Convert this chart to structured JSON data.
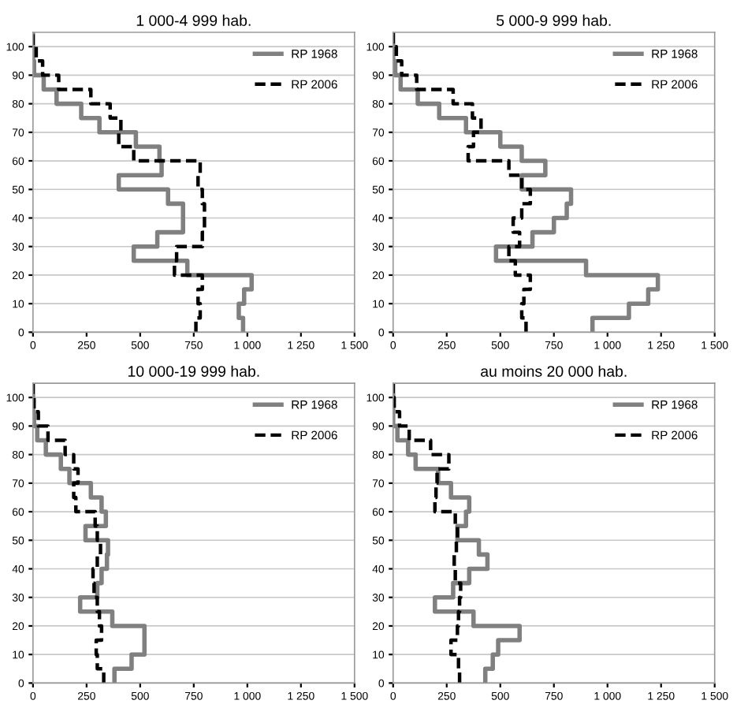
{
  "chart_data": [
    {
      "type": "line",
      "title": "1 000-4 999 hab.",
      "series": [
        {
          "name": "RP 1968",
          "color": "#808080",
          "line_style": "solid",
          "x": [
            980,
            980,
            960,
            960,
            985,
            985,
            1020,
            1020,
            720,
            720,
            470,
            470,
            580,
            580,
            700,
            700,
            700,
            700,
            630,
            630,
            400,
            400,
            600,
            600,
            590,
            590,
            480,
            480,
            310,
            310,
            225,
            225,
            110,
            110,
            50,
            50,
            5,
            5,
            0,
            0,
            0,
            0
          ],
          "values": [
            0,
            5,
            5,
            10,
            10,
            15,
            15,
            20,
            20,
            25,
            25,
            30,
            30,
            35,
            35,
            40,
            40,
            45,
            45,
            50,
            50,
            55,
            55,
            60,
            60,
            65,
            65,
            70,
            70,
            75,
            75,
            80,
            80,
            85,
            85,
            90,
            90,
            95,
            95,
            100,
            100,
            105
          ]
        },
        {
          "name": "RP 2006",
          "color": "#000000",
          "line_style": "dashed",
          "x": [
            760,
            760,
            780,
            780,
            770,
            770,
            790,
            790,
            660,
            660,
            670,
            670,
            790,
            790,
            800,
            800,
            800,
            800,
            790,
            790,
            770,
            770,
            780,
            780,
            470,
            470,
            400,
            400,
            410,
            410,
            360,
            360,
            270,
            270,
            120,
            120,
            45,
            45,
            15,
            15,
            0,
            0
          ],
          "values": [
            0,
            5,
            5,
            10,
            10,
            15,
            15,
            20,
            20,
            25,
            25,
            30,
            30,
            35,
            35,
            40,
            40,
            45,
            45,
            50,
            50,
            55,
            55,
            60,
            60,
            65,
            65,
            70,
            70,
            75,
            75,
            80,
            80,
            85,
            85,
            90,
            90,
            95,
            95,
            100,
            100,
            105
          ]
        }
      ],
      "xlim": [
        0,
        1500
      ],
      "xticks": [
        0,
        250,
        500,
        750,
        {
          "value": 1000,
          "label": "1 000"
        },
        {
          "value": 1250,
          "label": "1 250"
        },
        {
          "value": 1500,
          "label": "1 500"
        }
      ],
      "ylim": [
        0,
        105
      ],
      "yticks": [
        0,
        10,
        20,
        30,
        40,
        50,
        60,
        70,
        80,
        90,
        100
      ],
      "grid": "y",
      "legend": "top right"
    },
    {
      "type": "line",
      "title": "5 000-9 999 hab.",
      "series": [
        {
          "name": "RP 1968",
          "color": "#808080",
          "line_style": "solid",
          "x": [
            930,
            930,
            1100,
            1100,
            1190,
            1190,
            1235,
            1235,
            900,
            900,
            480,
            480,
            650,
            650,
            750,
            750,
            810,
            810,
            830,
            830,
            600,
            600,
            710,
            710,
            600,
            600,
            500,
            500,
            340,
            340,
            215,
            215,
            115,
            115,
            35,
            35,
            10,
            10,
            0,
            0,
            0,
            0
          ],
          "values": [
            0,
            5,
            5,
            10,
            10,
            15,
            15,
            20,
            20,
            25,
            25,
            30,
            30,
            35,
            35,
            40,
            40,
            45,
            45,
            50,
            50,
            55,
            55,
            60,
            60,
            65,
            65,
            70,
            70,
            75,
            75,
            80,
            80,
            85,
            85,
            90,
            90,
            95,
            95,
            100,
            100,
            105
          ]
        },
        {
          "name": "RP 2006",
          "color": "#000000",
          "line_style": "dashed",
          "x": [
            620,
            620,
            600,
            600,
            610,
            610,
            640,
            640,
            570,
            570,
            540,
            540,
            590,
            590,
            560,
            560,
            600,
            600,
            640,
            640,
            600,
            600,
            540,
            540,
            350,
            350,
            375,
            375,
            410,
            410,
            370,
            370,
            280,
            280,
            110,
            110,
            40,
            40,
            15,
            15,
            0,
            0
          ],
          "values": [
            0,
            5,
            5,
            10,
            10,
            15,
            15,
            20,
            20,
            25,
            25,
            30,
            30,
            35,
            35,
            40,
            40,
            45,
            45,
            50,
            50,
            55,
            55,
            60,
            60,
            65,
            65,
            70,
            70,
            75,
            75,
            80,
            80,
            85,
            85,
            90,
            90,
            95,
            95,
            100,
            100,
            105
          ]
        }
      ],
      "xlim": [
        0,
        1500
      ],
      "xticks": [
        0,
        250,
        500,
        750,
        {
          "value": 1000,
          "label": "1 000"
        },
        {
          "value": 1250,
          "label": "1 250"
        },
        {
          "value": 1500,
          "label": "1 500"
        }
      ],
      "ylim": [
        0,
        105
      ],
      "yticks": [
        0,
        10,
        20,
        30,
        40,
        50,
        60,
        70,
        80,
        90,
        100
      ],
      "grid": "y",
      "legend": "top right"
    },
    {
      "type": "line",
      "title": "10 000-19 999 hab.",
      "series": [
        {
          "name": "RP 1968",
          "color": "#808080",
          "line_style": "solid",
          "x": [
            380,
            380,
            460,
            460,
            520,
            520,
            520,
            520,
            370,
            370,
            220,
            220,
            300,
            300,
            320,
            320,
            345,
            345,
            350,
            350,
            245,
            245,
            340,
            340,
            320,
            320,
            270,
            270,
            170,
            170,
            130,
            130,
            60,
            60,
            20,
            20,
            5,
            5,
            0,
            0,
            0,
            0
          ],
          "values": [
            0,
            5,
            5,
            10,
            10,
            15,
            15,
            20,
            20,
            25,
            25,
            30,
            30,
            35,
            35,
            40,
            40,
            45,
            45,
            50,
            50,
            55,
            55,
            60,
            60,
            65,
            65,
            70,
            70,
            75,
            75,
            80,
            80,
            85,
            85,
            90,
            90,
            95,
            95,
            100,
            100,
            105
          ]
        },
        {
          "name": "RP 2006",
          "color": "#000000",
          "line_style": "dashed",
          "x": [
            330,
            330,
            300,
            300,
            295,
            295,
            320,
            320,
            310,
            310,
            300,
            300,
            285,
            285,
            280,
            280,
            300,
            300,
            315,
            315,
            300,
            300,
            290,
            290,
            200,
            200,
            190,
            190,
            210,
            210,
            190,
            190,
            150,
            150,
            70,
            70,
            25,
            25,
            5,
            5,
            0,
            0
          ],
          "values": [
            0,
            5,
            5,
            10,
            10,
            15,
            15,
            20,
            20,
            25,
            25,
            30,
            30,
            35,
            35,
            40,
            40,
            45,
            45,
            50,
            50,
            55,
            55,
            60,
            60,
            65,
            65,
            70,
            70,
            75,
            75,
            80,
            80,
            85,
            85,
            90,
            90,
            95,
            95,
            100,
            100,
            105
          ]
        }
      ],
      "xlim": [
        0,
        1500
      ],
      "xticks": [
        0,
        250,
        500,
        750,
        {
          "value": 1000,
          "label": "1 000"
        },
        {
          "value": 1250,
          "label": "1 250"
        },
        {
          "value": 1500,
          "label": "1 500"
        }
      ],
      "ylim": [
        0,
        105
      ],
      "yticks": [
        0,
        10,
        20,
        30,
        40,
        50,
        60,
        70,
        80,
        90,
        100
      ],
      "grid": "y",
      "legend": "top right"
    },
    {
      "type": "line",
      "title": "au moins 20 000 hab.",
      "series": [
        {
          "name": "RP 1968",
          "color": "#808080",
          "line_style": "solid",
          "x": [
            430,
            430,
            465,
            465,
            490,
            490,
            590,
            590,
            375,
            375,
            195,
            195,
            280,
            280,
            355,
            355,
            440,
            440,
            400,
            400,
            300,
            300,
            340,
            340,
            355,
            355,
            270,
            270,
            210,
            210,
            105,
            105,
            70,
            70,
            20,
            20,
            0,
            0,
            0,
            0,
            0,
            0
          ],
          "values": [
            0,
            5,
            5,
            10,
            10,
            15,
            15,
            20,
            20,
            25,
            25,
            30,
            30,
            35,
            35,
            40,
            40,
            45,
            45,
            50,
            50,
            55,
            55,
            60,
            60,
            65,
            65,
            70,
            70,
            75,
            75,
            80,
            80,
            85,
            85,
            90,
            90,
            95,
            95,
            100,
            100,
            105
          ]
        },
        {
          "name": "RP 2006",
          "color": "#000000",
          "line_style": "dashed",
          "x": [
            310,
            310,
            305,
            305,
            270,
            270,
            300,
            300,
            305,
            305,
            310,
            310,
            315,
            315,
            290,
            290,
            285,
            285,
            295,
            295,
            300,
            300,
            290,
            290,
            195,
            195,
            200,
            200,
            205,
            205,
            260,
            260,
            175,
            175,
            75,
            75,
            30,
            30,
            5,
            5,
            0,
            0
          ],
          "values": [
            0,
            5,
            5,
            10,
            10,
            15,
            15,
            20,
            20,
            25,
            25,
            30,
            30,
            35,
            35,
            40,
            40,
            45,
            45,
            50,
            50,
            55,
            55,
            60,
            60,
            65,
            65,
            70,
            70,
            75,
            75,
            80,
            80,
            85,
            85,
            90,
            90,
            95,
            95,
            100,
            100,
            105
          ]
        }
      ],
      "xlim": [
        0,
        1500
      ],
      "xticks": [
        0,
        250,
        500,
        750,
        {
          "value": 1000,
          "label": "1 000"
        },
        {
          "value": 1250,
          "label": "1 250"
        },
        {
          "value": 1500,
          "label": "1 500"
        }
      ],
      "ylim": [
        0,
        105
      ],
      "yticks": [
        0,
        10,
        20,
        30,
        40,
        50,
        60,
        70,
        80,
        90,
        100
      ],
      "grid": "y",
      "legend": "top right"
    }
  ]
}
